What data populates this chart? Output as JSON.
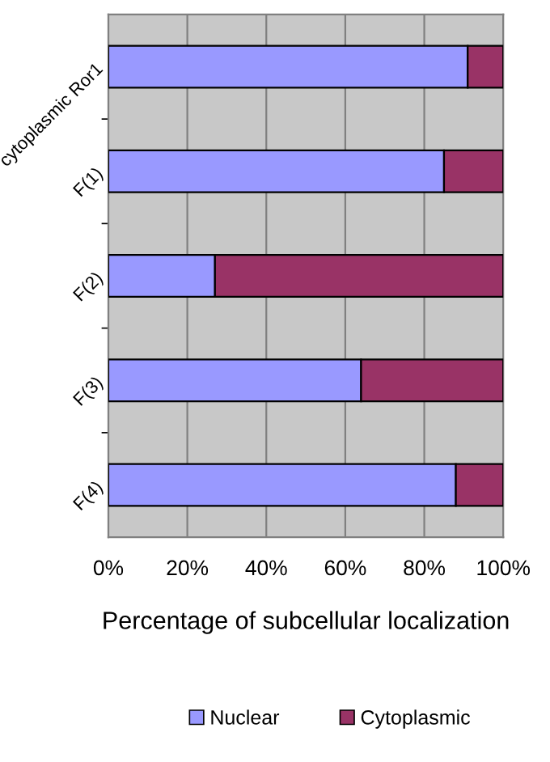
{
  "chart_data": {
    "type": "bar",
    "orientation": "horizontal",
    "stacked": true,
    "xlabel": "Percentage of subcellular localization",
    "categories": [
      "cytoplasmic Ror1",
      "F(1)",
      "F(2)",
      "F(3)",
      "F(4)"
    ],
    "series": [
      {
        "name": "Nuclear",
        "color": "#9999ff",
        "values": [
          91,
          85,
          27,
          64,
          88
        ]
      },
      {
        "name": "Cytoplasmic",
        "color": "#993366",
        "values": [
          9,
          15,
          73,
          36,
          12
        ]
      }
    ],
    "xlim": [
      0,
      100
    ],
    "xticks": [
      {
        "value": 0,
        "label": "0%"
      },
      {
        "value": 20,
        "label": "20%"
      },
      {
        "value": 40,
        "label": "40%"
      },
      {
        "value": 60,
        "label": "60%"
      },
      {
        "value": 80,
        "label": "80%"
      },
      {
        "value": 100,
        "label": "100%"
      }
    ],
    "grid": "x",
    "legend": "bottom"
  }
}
